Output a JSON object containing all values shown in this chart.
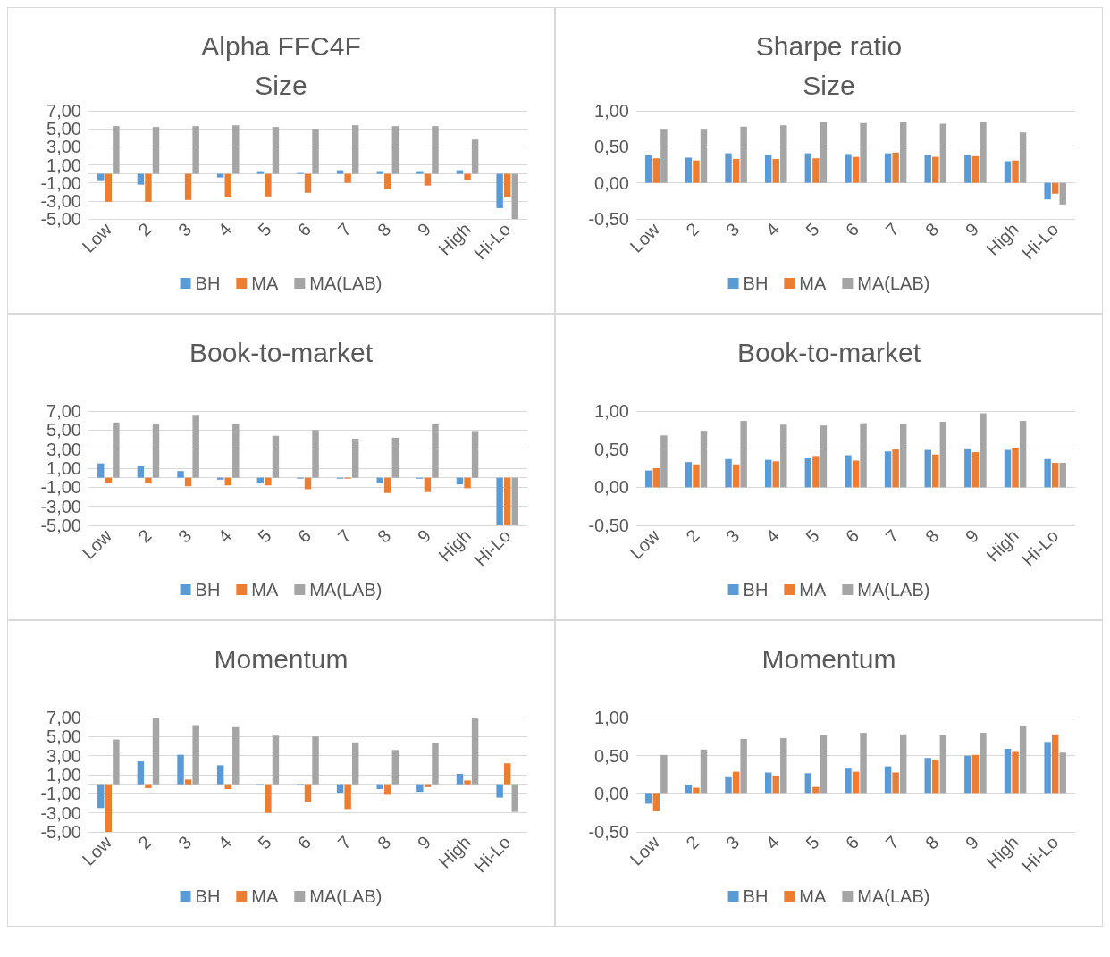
{
  "chart_data": [
    {
      "type": "bar",
      "title": "Alpha FFC4F",
      "subtitle": "Size",
      "categories": [
        "Low",
        "2",
        "3",
        "4",
        "5",
        "6",
        "7",
        "8",
        "9",
        "High",
        "Hi-Lo"
      ],
      "ylim": [
        -5,
        7
      ],
      "yticks": [
        {
          "value": -5,
          "label": "-5,00"
        },
        {
          "value": -3,
          "label": "-3,00"
        },
        {
          "value": -1,
          "label": "-1,00"
        },
        {
          "value": 1,
          "label": "1,00"
        },
        {
          "value": 3,
          "label": "3,00"
        },
        {
          "value": 5,
          "label": "5,00"
        },
        {
          "value": 7,
          "label": "7,00"
        }
      ],
      "grid": "y",
      "legend": "bottom",
      "series": [
        {
          "name": "BH",
          "color": "#5b9bd5",
          "values": [
            -0.8,
            -1.2,
            0,
            -0.4,
            0.3,
            0.1,
            0.4,
            0.3,
            0.3,
            0.4,
            -3.8
          ]
        },
        {
          "name": "MA",
          "color": "#ed7d31",
          "values": [
            -3.1,
            -3.1,
            -2.9,
            -2.6,
            -2.5,
            -2.1,
            -1.0,
            -1.7,
            -1.3,
            -0.7,
            -2.6
          ]
        },
        {
          "name": "MA(LAB)",
          "color": "#a5a5a5",
          "values": [
            5.3,
            5.2,
            5.3,
            5.4,
            5.2,
            5.0,
            5.4,
            5.3,
            5.3,
            3.8,
            -5.0
          ]
        }
      ]
    },
    {
      "type": "bar",
      "title": "Sharpe ratio",
      "subtitle": "Size",
      "categories": [
        "Low",
        "2",
        "3",
        "4",
        "5",
        "6",
        "7",
        "8",
        "9",
        "High",
        "Hi-Lo"
      ],
      "ylim": [
        -0.5,
        1
      ],
      "yticks": [
        {
          "value": -0.5,
          "label": "-0,50"
        },
        {
          "value": 0,
          "label": "0,00"
        },
        {
          "value": 0.5,
          "label": "0,50"
        },
        {
          "value": 1,
          "label": "1,00"
        }
      ],
      "grid": "y",
      "legend": "bottom",
      "series": [
        {
          "name": "BH",
          "color": "#5b9bd5",
          "values": [
            0.38,
            0.35,
            0.41,
            0.39,
            0.41,
            0.4,
            0.41,
            0.39,
            0.39,
            0.3,
            -0.23
          ]
        },
        {
          "name": "MA",
          "color": "#ed7d31",
          "values": [
            0.34,
            0.31,
            0.33,
            0.33,
            0.34,
            0.36,
            0.42,
            0.36,
            0.37,
            0.31,
            -0.15
          ]
        },
        {
          "name": "MA(LAB)",
          "color": "#a5a5a5",
          "values": [
            0.75,
            0.75,
            0.78,
            0.8,
            0.85,
            0.83,
            0.84,
            0.82,
            0.85,
            0.7,
            -0.3
          ]
        }
      ]
    },
    {
      "type": "bar",
      "title": "Book-to-market",
      "categories": [
        "Low",
        "2",
        "3",
        "4",
        "5",
        "6",
        "7",
        "8",
        "9",
        "High",
        "Hi-Lo"
      ],
      "ylim": [
        -5,
        7
      ],
      "yticks": [
        {
          "value": -5,
          "label": "-5,00"
        },
        {
          "value": -3,
          "label": "-3,00"
        },
        {
          "value": -1,
          "label": "-1,00"
        },
        {
          "value": 1,
          "label": "1,00"
        },
        {
          "value": 3,
          "label": "3,00"
        },
        {
          "value": 5,
          "label": "5,00"
        },
        {
          "value": 7,
          "label": "7,00"
        }
      ],
      "grid": "y",
      "legend": "bottom",
      "series": [
        {
          "name": "BH",
          "color": "#5b9bd5",
          "values": [
            1.5,
            1.2,
            0.7,
            -0.2,
            -0.6,
            -0.1,
            -0.1,
            -0.6,
            -0.1,
            -0.7,
            -5.0
          ]
        },
        {
          "name": "MA",
          "color": "#ed7d31",
          "values": [
            -0.5,
            -0.6,
            -0.9,
            -0.8,
            -0.8,
            -1.2,
            -0.1,
            -1.6,
            -1.5,
            -1.1,
            -5.0
          ]
        },
        {
          "name": "MA(LAB)",
          "color": "#a5a5a5",
          "values": [
            5.8,
            5.7,
            6.6,
            5.6,
            4.4,
            5.0,
            4.1,
            4.2,
            5.6,
            4.9,
            -5.0
          ]
        }
      ]
    },
    {
      "type": "bar",
      "title": "Book-to-market",
      "categories": [
        "Low",
        "2",
        "3",
        "4",
        "5",
        "6",
        "7",
        "8",
        "9",
        "High",
        "Hi-Lo"
      ],
      "ylim": [
        -0.5,
        1
      ],
      "yticks": [
        {
          "value": -0.5,
          "label": "-0,50"
        },
        {
          "value": 0,
          "label": "0,00"
        },
        {
          "value": 0.5,
          "label": "0,50"
        },
        {
          "value": 1,
          "label": "1,00"
        }
      ],
      "grid": "y",
      "legend": "bottom",
      "series": [
        {
          "name": "BH",
          "color": "#5b9bd5",
          "values": [
            0.22,
            0.33,
            0.37,
            0.36,
            0.38,
            0.42,
            0.47,
            0.49,
            0.51,
            0.49,
            0.37
          ]
        },
        {
          "name": "MA",
          "color": "#ed7d31",
          "values": [
            0.25,
            0.3,
            0.3,
            0.34,
            0.41,
            0.35,
            0.5,
            0.43,
            0.46,
            0.52,
            0.32
          ]
        },
        {
          "name": "MA(LAB)",
          "color": "#a5a5a5",
          "values": [
            0.68,
            0.74,
            0.87,
            0.82,
            0.81,
            0.84,
            0.83,
            0.86,
            0.97,
            0.87,
            0.32
          ]
        }
      ]
    },
    {
      "type": "bar",
      "title": "Momentum",
      "categories": [
        "Low",
        "2",
        "3",
        "4",
        "5",
        "6",
        "7",
        "8",
        "9",
        "High",
        "Hi-Lo"
      ],
      "ylim": [
        -5,
        7
      ],
      "yticks": [
        {
          "value": -5,
          "label": "-5,00"
        },
        {
          "value": -3,
          "label": "-3,00"
        },
        {
          "value": -1,
          "label": "-1,00"
        },
        {
          "value": 1,
          "label": "1,00"
        },
        {
          "value": 3,
          "label": "3,00"
        },
        {
          "value": 5,
          "label": "5,00"
        },
        {
          "value": 7,
          "label": "7,00"
        }
      ],
      "grid": "y",
      "legend": "bottom",
      "series": [
        {
          "name": "BH",
          "color": "#5b9bd5",
          "values": [
            -2.5,
            2.4,
            3.1,
            2.0,
            -0.1,
            -0.1,
            -0.9,
            -0.5,
            -0.8,
            1.1,
            -1.4
          ]
        },
        {
          "name": "MA",
          "color": "#ed7d31",
          "values": [
            -5.0,
            -0.4,
            0.5,
            -0.5,
            -3.0,
            -1.9,
            -2.6,
            -1.1,
            -0.3,
            0.4,
            2.2
          ]
        },
        {
          "name": "MA(LAB)",
          "color": "#a5a5a5",
          "values": [
            4.7,
            7.0,
            6.2,
            6.0,
            5.1,
            5.0,
            4.4,
            3.6,
            4.3,
            6.9,
            -2.9
          ]
        }
      ]
    },
    {
      "type": "bar",
      "title": "Momentum",
      "categories": [
        "Low",
        "2",
        "3",
        "4",
        "5",
        "6",
        "7",
        "8",
        "9",
        "High",
        "Hi-Lo"
      ],
      "ylim": [
        -0.5,
        1
      ],
      "yticks": [
        {
          "value": -0.5,
          "label": "-0,50"
        },
        {
          "value": 0,
          "label": "0,00"
        },
        {
          "value": 0.5,
          "label": "0,50"
        },
        {
          "value": 1,
          "label": "1,00"
        }
      ],
      "grid": "y",
      "legend": "bottom",
      "series": [
        {
          "name": "BH",
          "color": "#5b9bd5",
          "values": [
            -0.13,
            0.12,
            0.23,
            0.28,
            0.27,
            0.33,
            0.36,
            0.47,
            0.5,
            0.59,
            0.68
          ]
        },
        {
          "name": "MA",
          "color": "#ed7d31",
          "values": [
            -0.23,
            0.08,
            0.29,
            0.24,
            0.09,
            0.29,
            0.28,
            0.45,
            0.51,
            0.55,
            0.78
          ]
        },
        {
          "name": "MA(LAB)",
          "color": "#a5a5a5",
          "values": [
            0.51,
            0.58,
            0.72,
            0.73,
            0.77,
            0.8,
            0.78,
            0.77,
            0.8,
            0.89,
            0.54
          ]
        }
      ]
    }
  ]
}
